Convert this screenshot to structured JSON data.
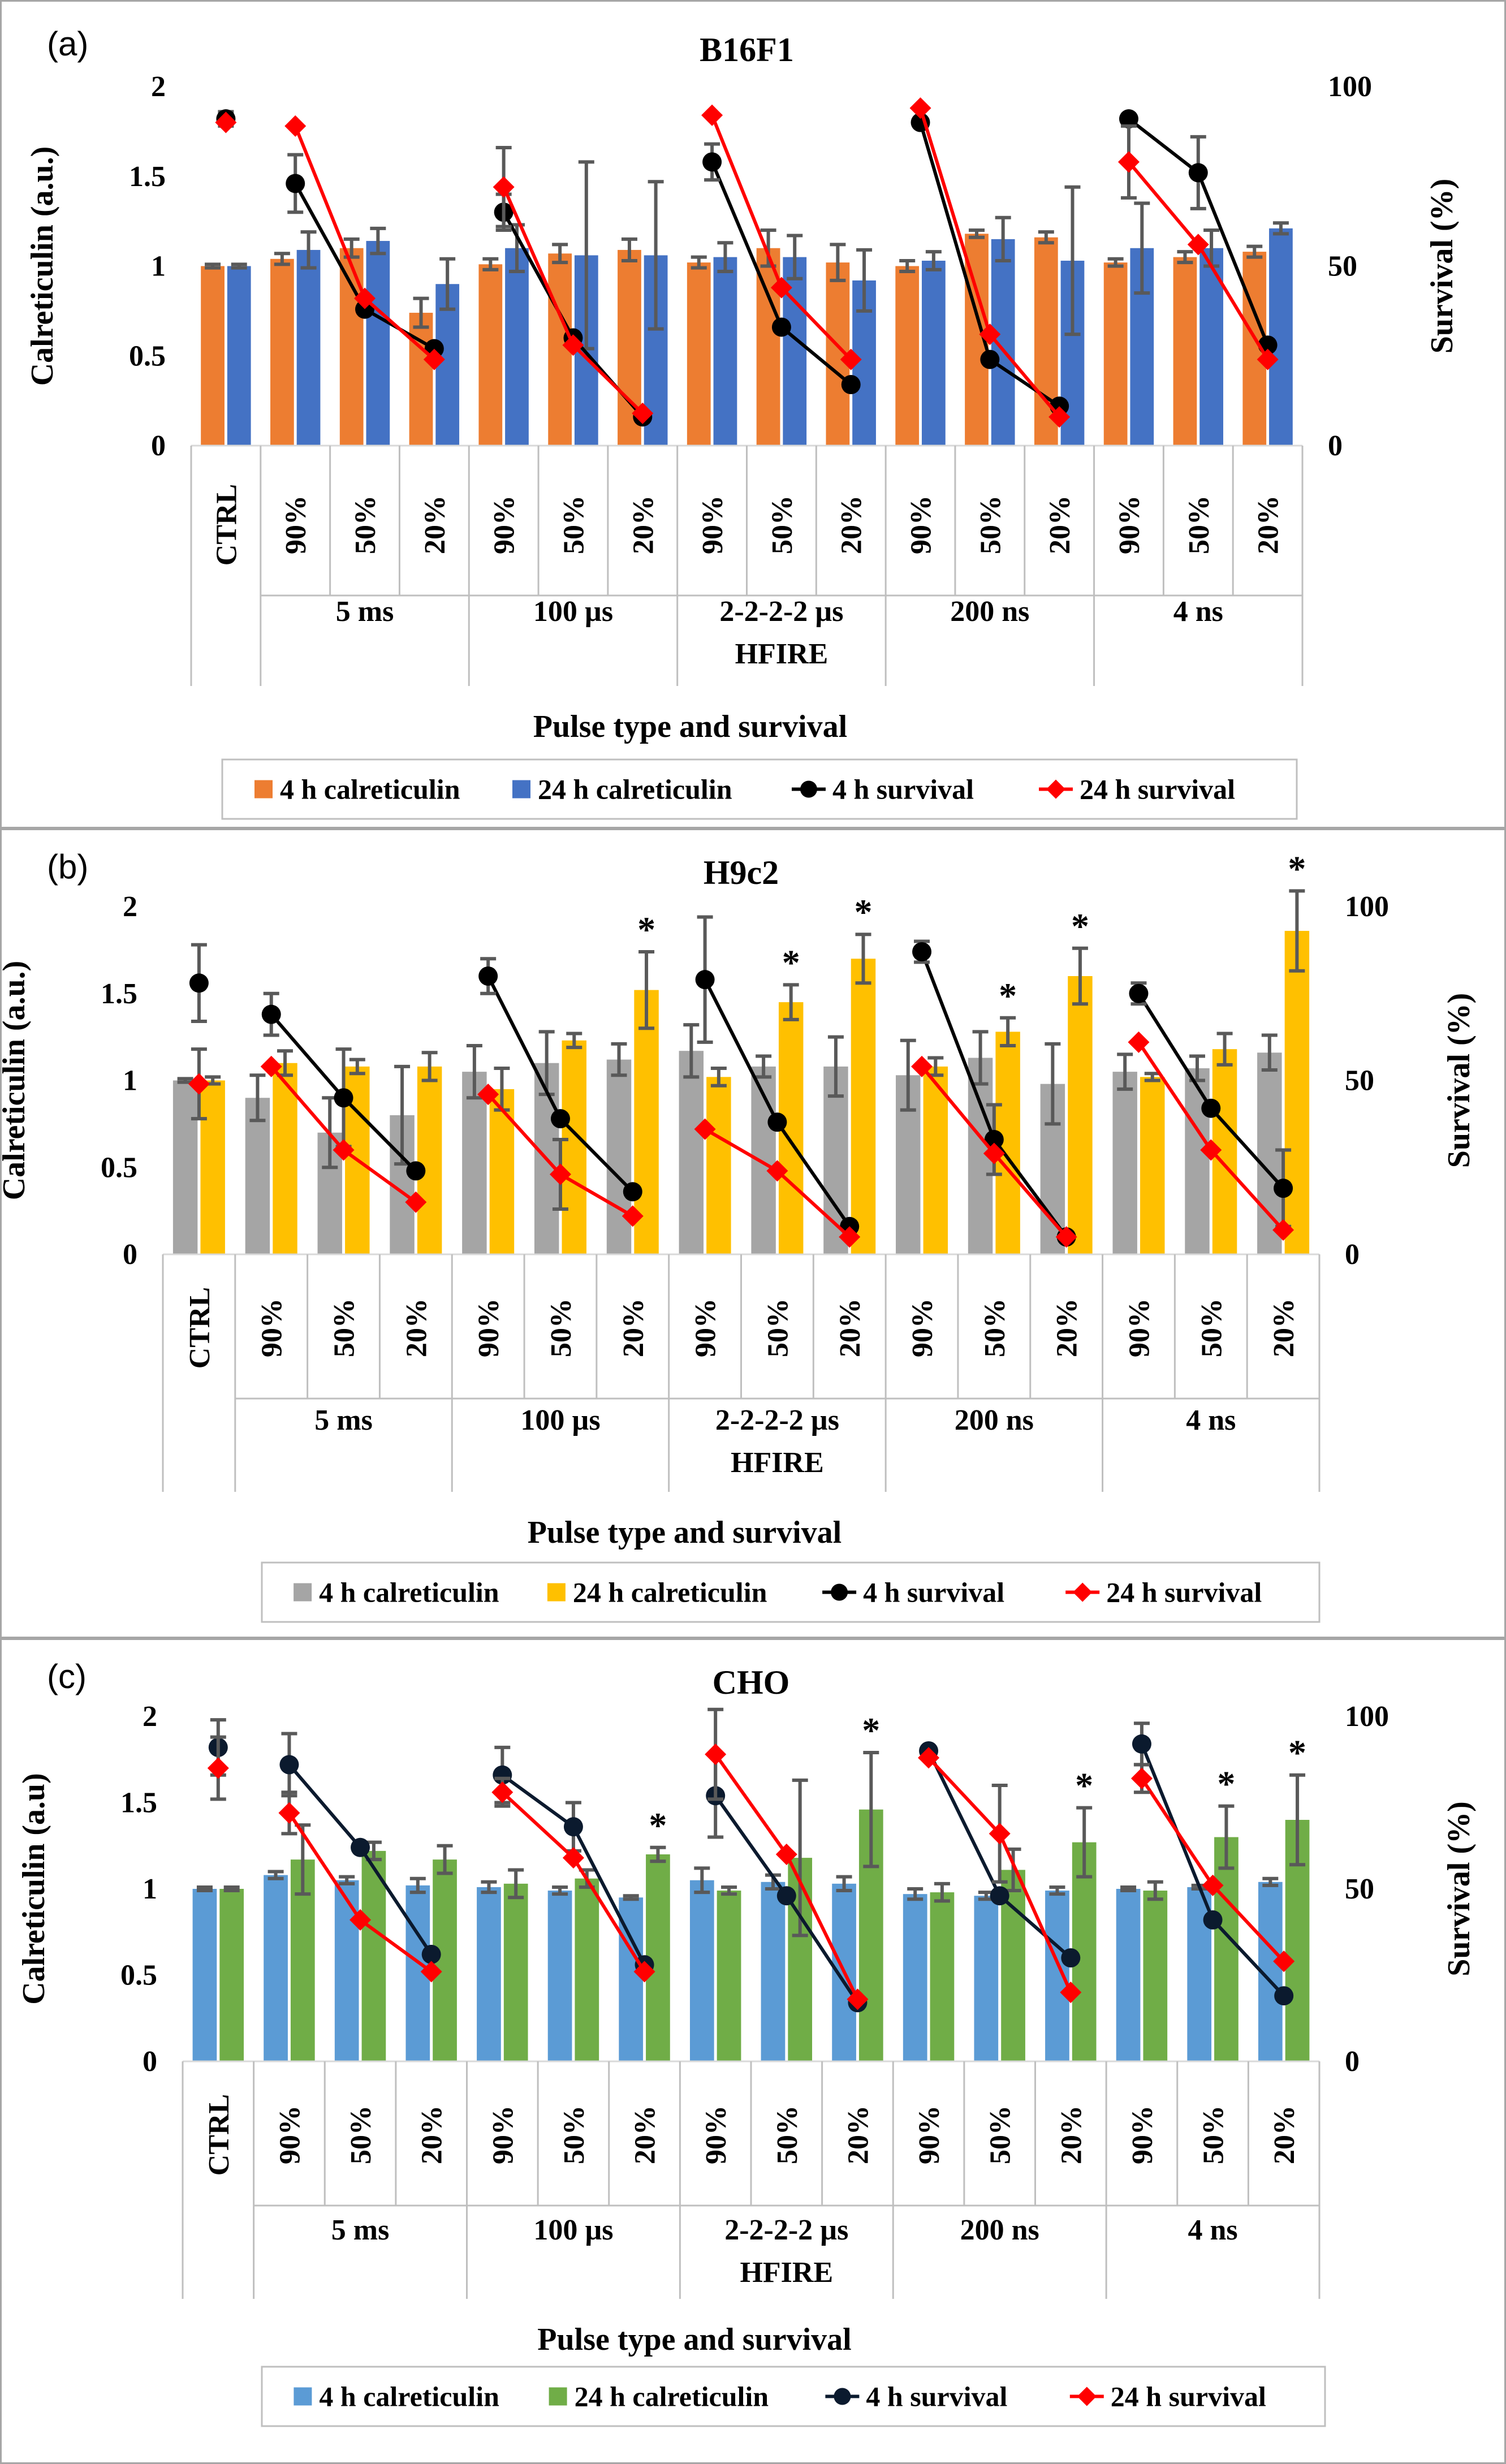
{
  "categories": [
    "CTRL",
    "90%",
    "50%",
    "20%",
    "90%",
    "50%",
    "20%",
    "90%",
    "50%",
    "20%",
    "90%",
    "50%",
    "20%",
    "90%",
    "50%",
    "20%"
  ],
  "groups": [
    {
      "label": "5 ms",
      "sub": ""
    },
    {
      "label": "100 µs",
      "sub": ""
    },
    {
      "label": "2-2-2-2 µs",
      "sub": "HFIRE"
    },
    {
      "label": "200 ns",
      "sub": ""
    },
    {
      "label": "4 ns",
      "sub": ""
    }
  ],
  "chart_data": [
    {
      "type": "bar",
      "panel": "(a)",
      "title": "B16F1",
      "xlabel": "Pulse type and survival",
      "ylabel": "Calreticulin (a.u.)",
      "y2label": "Survival (%)",
      "ylim": [
        0,
        2
      ],
      "yticks": [
        "0",
        "0.5",
        "1",
        "1.5",
        "2"
      ],
      "y2lim": [
        0,
        100
      ],
      "y2ticks": [
        "0",
        "50",
        "100"
      ],
      "legend": [
        "4 h calreticulin",
        "24 h calreticulin",
        "4 h survival",
        "24 h survival"
      ],
      "colors": {
        "bar4": "#ED7D31",
        "bar24": "#4472C4",
        "surv4": "#000000",
        "surv24": "#FF0000"
      },
      "series": [
        {
          "name": "4 h calreticulin",
          "values": [
            1.0,
            1.04,
            1.1,
            0.74,
            1.01,
            1.07,
            1.09,
            1.02,
            1.1,
            1.02,
            1.0,
            1.18,
            1.16,
            1.02,
            1.05,
            1.08
          ],
          "errors": [
            0.01,
            0.03,
            0.05,
            0.08,
            0.03,
            0.05,
            0.06,
            0.03,
            0.1,
            0.1,
            0.03,
            0.02,
            0.03,
            0.02,
            0.03,
            0.03
          ]
        },
        {
          "name": "24 h calreticulin",
          "values": [
            1.0,
            1.09,
            1.14,
            0.9,
            1.1,
            1.06,
            1.06,
            1.05,
            1.05,
            0.92,
            1.03,
            1.15,
            1.03,
            1.1,
            1.1,
            1.21
          ],
          "errors": [
            0.01,
            0.1,
            0.07,
            0.14,
            0.13,
            0.52,
            0.41,
            0.08,
            0.12,
            0.17,
            0.05,
            0.12,
            0.41,
            0.25,
            0.1,
            0.03
          ]
        },
        {
          "name": "4 h survival",
          "values": [
            91,
            73,
            38,
            27,
            65,
            30,
            8,
            79,
            33,
            17,
            90,
            24,
            11,
            91,
            76,
            28
          ],
          "errors": [
            2,
            8,
            0,
            0,
            5,
            0,
            0,
            5,
            0,
            0,
            0,
            0,
            0,
            0,
            10,
            0
          ]
        },
        {
          "name": "24 h survival",
          "values": [
            90,
            89,
            41,
            24,
            72,
            28,
            9,
            92,
            44,
            24,
            94,
            31,
            8,
            79,
            56,
            24
          ],
          "errors": [
            0,
            0,
            0,
            0,
            11,
            0,
            0,
            0,
            0,
            0,
            0,
            0,
            0,
            10,
            0,
            0
          ]
        }
      ],
      "stars": []
    },
    {
      "type": "bar",
      "panel": "(b)",
      "title": "H9c2",
      "xlabel": "Pulse type and survival",
      "ylabel": "Calreticulin (a.u.)",
      "y2label": "Survival (%)",
      "ylim": [
        0,
        2
      ],
      "yticks": [
        "0",
        "0.5",
        "1",
        "1.5",
        "2"
      ],
      "y2lim": [
        0,
        100
      ],
      "y2ticks": [
        "0",
        "50",
        "100"
      ],
      "legend": [
        "4 h calreticulin",
        "24 h calreticulin",
        "4 h survival",
        "24 h survival"
      ],
      "colors": {
        "bar4": "#A5A5A5",
        "bar24": "#FFC000",
        "surv4": "#000000",
        "surv24": "#FF0000"
      },
      "series": [
        {
          "name": "4 h calreticulin",
          "values": [
            1.0,
            0.9,
            0.7,
            0.8,
            1.05,
            1.1,
            1.12,
            1.17,
            1.08,
            1.08,
            1.03,
            1.13,
            0.98,
            1.05,
            1.07,
            1.16
          ],
          "errors": [
            0.01,
            0.13,
            0.2,
            0.28,
            0.15,
            0.18,
            0.09,
            0.15,
            0.06,
            0.17,
            0.2,
            0.15,
            0.23,
            0.1,
            0.07,
            0.1
          ]
        },
        {
          "name": "24 h calreticulin",
          "values": [
            1.0,
            1.1,
            1.08,
            1.08,
            0.95,
            1.23,
            1.52,
            1.02,
            1.45,
            1.7,
            1.08,
            1.28,
            1.6,
            1.02,
            1.18,
            1.86
          ],
          "errors": [
            0.02,
            0.07,
            0.04,
            0.08,
            0.12,
            0.04,
            0.22,
            0.05,
            0.1,
            0.14,
            0.05,
            0.08,
            0.16,
            0.02,
            0.09,
            0.23
          ]
        },
        {
          "name": "4 h survival",
          "values": [
            78,
            69,
            45,
            24,
            80,
            39,
            18,
            79,
            38,
            8,
            87,
            33,
            5,
            75,
            42,
            19
          ],
          "errors": [
            11,
            6,
            14,
            0,
            5,
            0,
            0,
            18,
            0,
            0,
            3,
            10,
            0,
            3,
            0,
            11
          ]
        },
        {
          "name": "24 h survival",
          "values": [
            49,
            54,
            30,
            15,
            46,
            23,
            11,
            36,
            24,
            5,
            54,
            29,
            5,
            61,
            30,
            7
          ],
          "errors": [
            10,
            0,
            0,
            0,
            0,
            10,
            0,
            0,
            0,
            0,
            0,
            0,
            0,
            0,
            0,
            0
          ]
        }
      ],
      "stars": [
        6,
        8,
        9,
        11,
        12,
        15
      ]
    },
    {
      "type": "bar",
      "panel": "(c)",
      "title": "CHO",
      "xlabel": "Pulse type and survival",
      "ylabel": "Calreticulin (a.u)",
      "y2label": "Survival (%)",
      "ylim": [
        0,
        2
      ],
      "yticks": [
        "0",
        "0.5",
        "1",
        "1.5",
        "2"
      ],
      "y2lim": [
        0,
        100
      ],
      "y2ticks": [
        "0",
        "50",
        "100"
      ],
      "legend": [
        "4 h calreticulin",
        "24 h calreticulin",
        "4 h survival",
        "24 h survival"
      ],
      "colors": {
        "bar4": "#5B9BD5",
        "bar24": "#70AD47",
        "surv4": "#0B1A2E",
        "surv24": "#FF0000"
      },
      "series": [
        {
          "name": "4 h calreticulin",
          "values": [
            1.0,
            1.08,
            1.05,
            1.02,
            1.01,
            0.99,
            0.95,
            1.05,
            1.04,
            1.03,
            0.97,
            0.96,
            0.99,
            1.0,
            1.01,
            1.04
          ],
          "errors": [
            0.01,
            0.02,
            0.02,
            0.04,
            0.03,
            0.02,
            0.01,
            0.07,
            0.04,
            0.04,
            0.03,
            0.02,
            0.02,
            0.01,
            0.01,
            0.02
          ]
        },
        {
          "name": "24 h calreticulin",
          "values": [
            1.0,
            1.17,
            1.22,
            1.17,
            1.03,
            1.06,
            1.2,
            0.99,
            1.18,
            1.46,
            0.98,
            1.11,
            1.27,
            0.99,
            1.3,
            1.4
          ],
          "errors": [
            0.01,
            0.2,
            0.05,
            0.08,
            0.08,
            0.05,
            0.04,
            0.02,
            0.45,
            0.33,
            0.05,
            0.12,
            0.2,
            0.05,
            0.18,
            0.26
          ]
        },
        {
          "name": "4 h survival",
          "values": [
            91,
            86,
            62,
            31,
            83,
            68,
            28,
            77,
            48,
            17,
            90,
            48,
            30,
            92,
            41,
            19
          ],
          "errors": [
            8,
            9,
            0,
            0,
            8,
            7,
            0,
            12,
            0,
            0,
            0,
            0,
            0,
            6,
            0,
            0
          ]
        },
        {
          "name": "24 h survival",
          "values": [
            85,
            72,
            41,
            26,
            78,
            59,
            26,
            89,
            60,
            18,
            88,
            66,
            20,
            82,
            51,
            29
          ],
          "errors": [
            9,
            6,
            0,
            0,
            4,
            0,
            0,
            13,
            0,
            0,
            0,
            14,
            0,
            4,
            0,
            0
          ]
        }
      ],
      "stars": [
        6,
        9,
        12,
        14,
        15
      ]
    }
  ]
}
